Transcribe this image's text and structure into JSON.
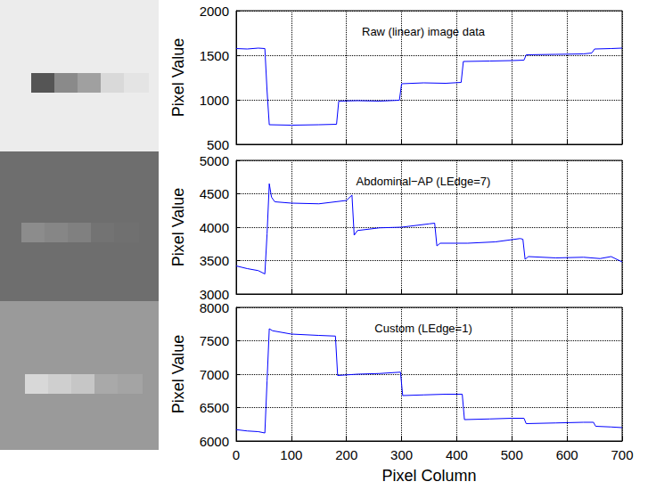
{
  "chart_data": [
    {
      "type": "line",
      "title": "Raw (linear) image data",
      "ylabel": "Pixel Value",
      "x": [
        0,
        20,
        40,
        52,
        56,
        60,
        100,
        150,
        182,
        186,
        220,
        260,
        296,
        300,
        340,
        380,
        408,
        412,
        460,
        500,
        522,
        526,
        580,
        630,
        645,
        650,
        680,
        700
      ],
      "values": [
        1575,
        1570,
        1580,
        1575,
        1100,
        720,
        715,
        720,
        725,
        985,
        990,
        985,
        995,
        1180,
        1190,
        1185,
        1195,
        1430,
        1435,
        1440,
        1445,
        1505,
        1510,
        1515,
        1525,
        1570,
        1575,
        1580
      ],
      "color": "#0000ff",
      "xlim": [
        0,
        700
      ],
      "xticks": [
        0,
        100,
        200,
        300,
        400,
        500,
        600,
        700
      ],
      "ylim": [
        500,
        2000
      ],
      "yticks": [
        500,
        1000,
        1500,
        2000
      ],
      "grid": true,
      "tick_labels": "y"
    },
    {
      "type": "line",
      "title": "Abdominal−AP (LEdge=7)",
      "ylabel": "Pixel Value",
      "x": [
        0,
        20,
        40,
        52,
        56,
        60,
        64,
        70,
        100,
        150,
        200,
        210,
        214,
        220,
        260,
        300,
        350,
        360,
        364,
        370,
        420,
        470,
        515,
        520,
        524,
        530,
        580,
        630,
        660,
        680,
        700
      ],
      "values": [
        3420,
        3380,
        3350,
        3300,
        3900,
        4650,
        4450,
        4380,
        4360,
        4350,
        4400,
        4480,
        3880,
        3950,
        3990,
        4000,
        4050,
        4060,
        3720,
        3760,
        3760,
        3780,
        3830,
        3820,
        3520,
        3560,
        3540,
        3550,
        3530,
        3560,
        3480
      ],
      "color": "#0000ff",
      "xlim": [
        0,
        700
      ],
      "xticks": [
        0,
        100,
        200,
        300,
        400,
        500,
        600,
        700
      ],
      "ylim": [
        3000,
        5000
      ],
      "yticks": [
        3000,
        3500,
        4000,
        4500,
        5000
      ],
      "grid": true,
      "tick_labels": "y"
    },
    {
      "type": "line",
      "title": "Custom (LEdge=1)",
      "ylabel": "Pixel Value",
      "xlabel": "Pixel Column",
      "x": [
        0,
        20,
        40,
        52,
        56,
        60,
        66,
        100,
        150,
        180,
        184,
        220,
        260,
        298,
        302,
        340,
        380,
        410,
        414,
        460,
        500,
        522,
        526,
        580,
        630,
        648,
        652,
        680,
        700
      ],
      "values": [
        6170,
        6150,
        6140,
        6120,
        6900,
        7680,
        7650,
        7600,
        7580,
        7570,
        6980,
        7000,
        7010,
        7030,
        6680,
        6690,
        6700,
        6700,
        6320,
        6330,
        6340,
        6340,
        6260,
        6270,
        6280,
        6280,
        6220,
        6210,
        6200
      ],
      "color": "#0000ff",
      "xlim": [
        0,
        700
      ],
      "xticks": [
        0,
        100,
        200,
        300,
        400,
        500,
        600,
        700
      ],
      "ylim": [
        6000,
        8000
      ],
      "yticks": [
        6000,
        6500,
        7000,
        7500,
        8000
      ],
      "grid": true
    }
  ]
}
